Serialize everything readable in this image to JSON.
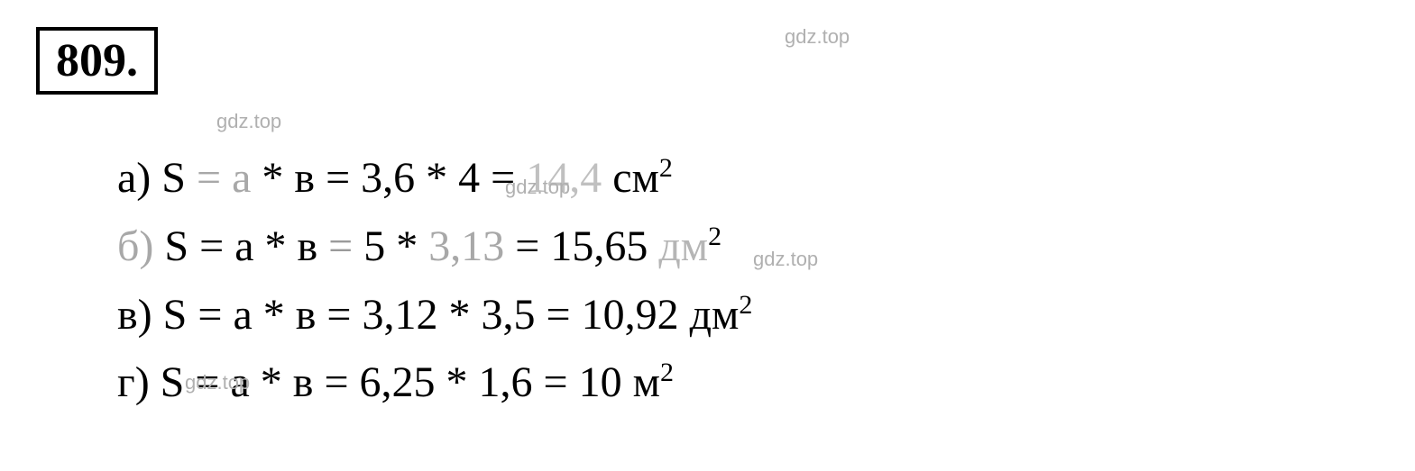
{
  "problem_number": "809.",
  "watermarks": {
    "text": "gdz.top"
  },
  "equations": {
    "a": {
      "label": "а)",
      "formula_lhs": "S",
      "eq1": "=",
      "var_a": "a",
      "op": "*",
      "var_b": "в",
      "eq2": "=",
      "val_a": "3,6",
      "val_b": "4",
      "eq3": "=",
      "result": "14,4",
      "unit": "см",
      "exp": "2"
    },
    "b": {
      "label": "б)",
      "formula_lhs": "S",
      "eq1": "=",
      "var_a": "a",
      "op": "*",
      "var_b": "в",
      "eq2": "=",
      "val_a": "5",
      "val_b": "3,13",
      "eq3": "=",
      "result": "15,65",
      "unit": "дм",
      "exp": "2"
    },
    "c": {
      "label": "в)",
      "formula_lhs": "S",
      "eq1": "=",
      "var_a": "a",
      "op": "*",
      "var_b": "в",
      "eq2": "=",
      "val_a": "3,12",
      "val_b": "3,5",
      "eq3": "=",
      "result": "10,92",
      "unit": "дм",
      "exp": "2"
    },
    "d": {
      "label": "г)",
      "formula_lhs": "S",
      "eq1": "=",
      "var_a": "a",
      "op": "*",
      "var_b": "в",
      "eq2": "=",
      "val_a": "6,25",
      "val_b": "1,6",
      "eq3": "=",
      "result": "10",
      "unit": "м",
      "exp": "2"
    }
  },
  "colors": {
    "text": "#000000",
    "faded": "#a8a8a8",
    "watermark": "#b0b0b0",
    "background": "#ffffff"
  },
  "typography": {
    "main_fontsize": 48,
    "number_fontsize": 52,
    "watermark_fontsize": 22,
    "font_family": "Times New Roman"
  }
}
